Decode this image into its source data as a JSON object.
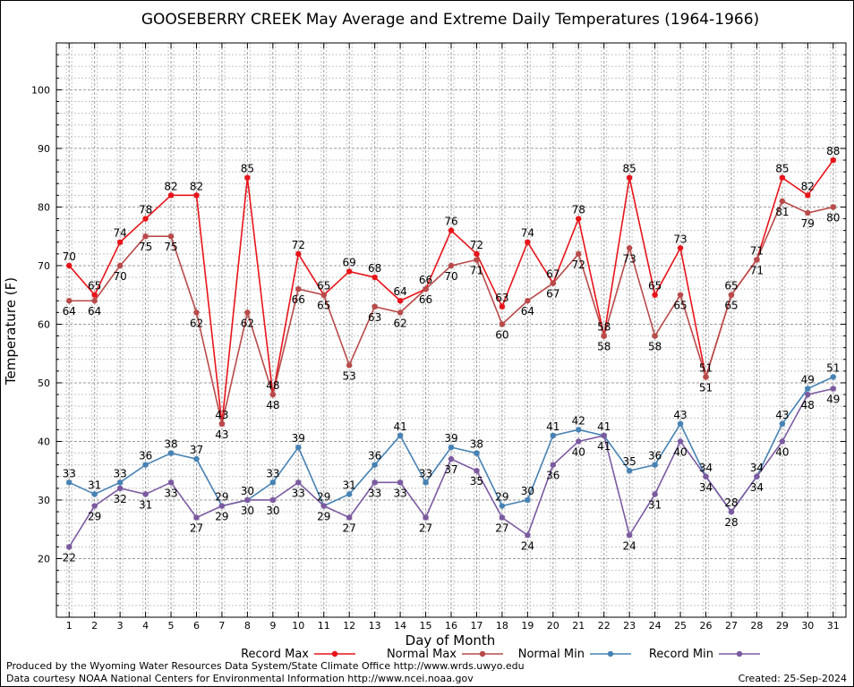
{
  "chart_data": {
    "type": "line",
    "title": "GOOSEBERRY CREEK May Average and Extreme Daily Temperatures (1964-1966)",
    "xlabel": "Day of Month",
    "ylabel": "Temperature (F)",
    "x": [
      1,
      2,
      3,
      4,
      5,
      6,
      7,
      8,
      9,
      10,
      11,
      12,
      13,
      14,
      15,
      16,
      17,
      18,
      19,
      20,
      21,
      22,
      23,
      24,
      25,
      26,
      27,
      28,
      29,
      30,
      31
    ],
    "ylim": [
      10,
      108
    ],
    "yticks": [
      20,
      30,
      40,
      50,
      60,
      70,
      80,
      90,
      100
    ],
    "grid": true,
    "legend_position": "bottom",
    "series": [
      {
        "name": "Record Max",
        "color": "#e8141a",
        "values": [
          70,
          65,
          74,
          78,
          82,
          82,
          43,
          85,
          48,
          72,
          65,
          69,
          68,
          64,
          66,
          76,
          72,
          63,
          74,
          67,
          78,
          58,
          85,
          65,
          73,
          51,
          65,
          71,
          85,
          82,
          88
        ]
      },
      {
        "name": "Normal Max",
        "color": "#b94a4a",
        "values": [
          64,
          64,
          70,
          75,
          75,
          62,
          43,
          62,
          48,
          66,
          65,
          53,
          63,
          62,
          66,
          70,
          71,
          60,
          64,
          67,
          72,
          58,
          73,
          58,
          65,
          51,
          65,
          71,
          81,
          79,
          80
        ]
      },
      {
        "name": "Normal Min",
        "color": "#4682b4",
        "values": [
          33,
          31,
          33,
          36,
          38,
          37,
          29,
          30,
          33,
          39,
          29,
          31,
          36,
          41,
          33,
          39,
          38,
          29,
          30,
          41,
          42,
          41,
          35,
          36,
          43,
          34,
          28,
          34,
          43,
          49,
          51
        ]
      },
      {
        "name": "Record Min",
        "color": "#7b5aa0",
        "values": [
          22,
          29,
          32,
          31,
          33,
          27,
          29,
          30,
          30,
          33,
          29,
          27,
          33,
          33,
          27,
          37,
          35,
          27,
          24,
          36,
          40,
          41,
          24,
          31,
          40,
          34,
          28,
          34,
          40,
          48,
          49
        ]
      }
    ]
  },
  "footer": {
    "produced_by": "Produced by the Wyoming Water Resources Data System/State Climate Office http://www.wrds.uwyo.edu",
    "courtesy": "Data courtesy NOAA National Centers for Environmental Information http://www.ncei.noaa.gov",
    "created": "Created:  25-Sep-2024"
  }
}
